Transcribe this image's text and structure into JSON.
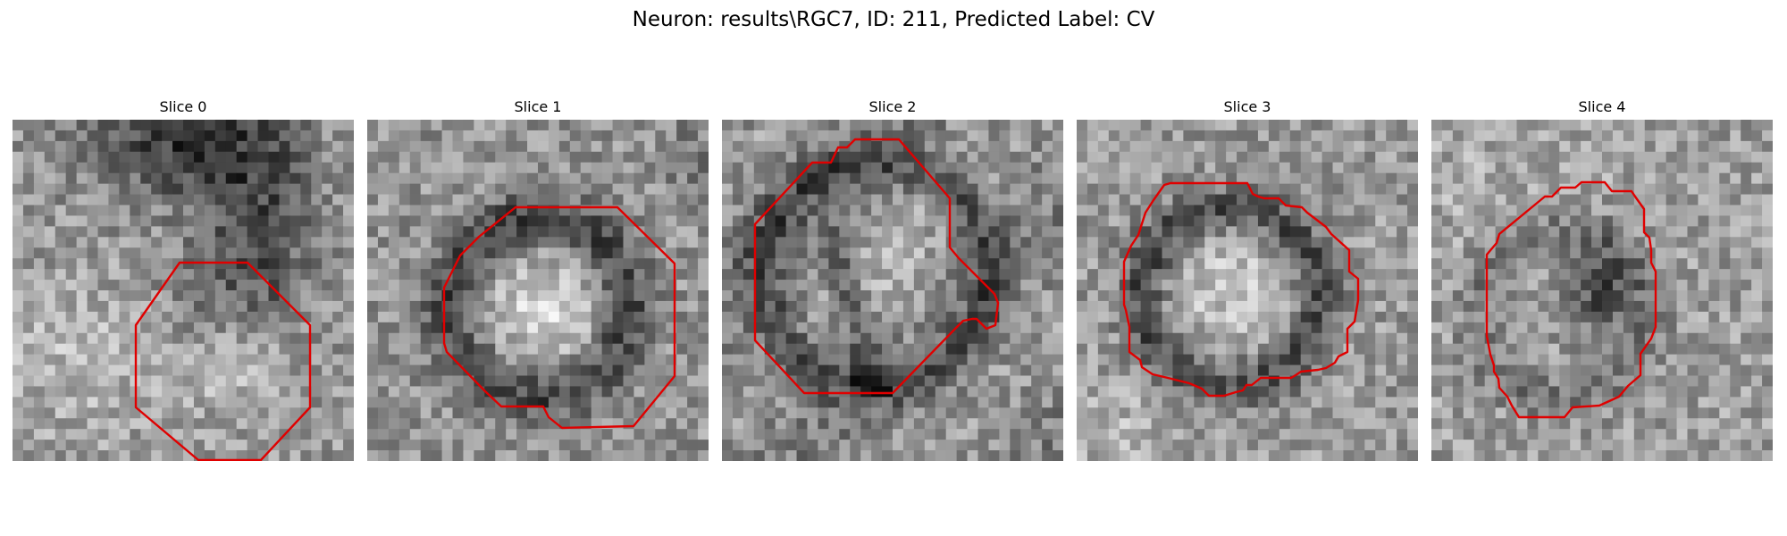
{
  "figure": {
    "title": "Neuron: results\\RGC7, ID: 211, Predicted Label: CV"
  },
  "panels": [
    {
      "title": "Slice 0"
    },
    {
      "title": "Slice 1"
    },
    {
      "title": "Slice 2"
    },
    {
      "title": "Slice 3"
    },
    {
      "title": "Slice 4"
    }
  ],
  "colors": {
    "contour": "#e00000",
    "background": "#ffffff"
  }
}
